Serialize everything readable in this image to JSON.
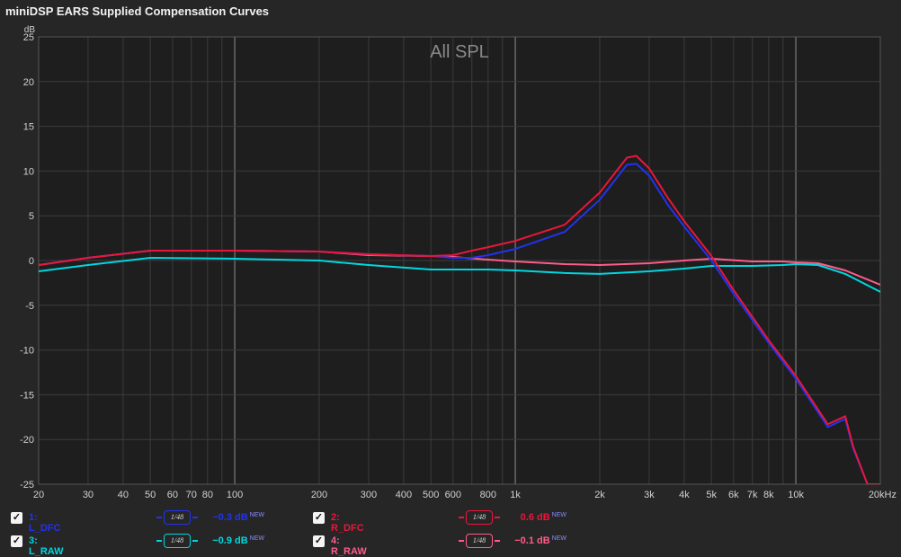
{
  "window": {
    "title": "miniDSP EARS Supplied Compensation Curves"
  },
  "chart_data": {
    "type": "line",
    "title": "All SPL",
    "ylabel": "dB",
    "xscale": "log",
    "xlim": [
      20,
      20000
    ],
    "ylim": [
      -25,
      25
    ],
    "grid": true,
    "xticks": [
      20,
      30,
      40,
      50,
      60,
      70,
      80,
      100,
      200,
      300,
      400,
      500,
      600,
      800,
      1000,
      2000,
      3000,
      4000,
      5000,
      6000,
      7000,
      8000,
      10000,
      20000
    ],
    "xtick_labels": [
      "20",
      "30",
      "40",
      "50",
      "60",
      "70",
      "80",
      "100",
      "200",
      "300",
      "400",
      "500",
      "600",
      "800",
      "1k",
      "2k",
      "3k",
      "4k",
      "5k",
      "6k",
      "7k",
      "8k",
      "10k",
      "20kHz"
    ],
    "yticks": [
      25,
      20,
      15,
      10,
      5,
      0,
      -5,
      -10,
      -15,
      -20,
      -25
    ],
    "ytick_labels": [
      "25",
      "20",
      "15",
      "10",
      "5",
      "0",
      "-5",
      "-10",
      "-15",
      "-20",
      "-25"
    ],
    "series": [
      {
        "name": "1: L_DFC",
        "color": "#2233ee",
        "x": [
          20,
          30,
          50,
          100,
          200,
          300,
          500,
          600,
          700,
          800,
          1000,
          1500,
          2000,
          2500,
          2700,
          3000,
          3500,
          4000,
          5000,
          6000,
          8000,
          10000,
          13000,
          15000,
          16000,
          18000,
          20000
        ],
        "y": [
          -0.5,
          0.3,
          1.1,
          1.1,
          1.0,
          0.7,
          0.5,
          0.3,
          0.3,
          0.6,
          1.3,
          3.2,
          6.8,
          10.7,
          10.8,
          9.5,
          6.2,
          3.8,
          0.0,
          -3.7,
          -9.2,
          -13.2,
          -18.6,
          -17.7,
          -21.0,
          -25.0,
          -25.0
        ]
      },
      {
        "name": "2: R_DFC",
        "color": "#e8173a",
        "x": [
          20,
          30,
          50,
          100,
          200,
          300,
          500,
          600,
          700,
          800,
          1000,
          1500,
          2000,
          2500,
          2700,
          3000,
          3500,
          4000,
          5000,
          6000,
          8000,
          10000,
          13000,
          15000,
          16000,
          18000,
          20000
        ],
        "y": [
          -0.5,
          0.3,
          1.1,
          1.1,
          1.0,
          0.7,
          0.5,
          0.6,
          1.1,
          1.5,
          2.2,
          4.0,
          7.6,
          11.5,
          11.7,
          10.3,
          7.0,
          4.4,
          0.5,
          -3.3,
          -8.9,
          -12.9,
          -18.3,
          -17.4,
          -20.8,
          -25.0,
          -25.0
        ]
      },
      {
        "name": "3: L_RAW",
        "color": "#00d7e0",
        "x": [
          20,
          30,
          50,
          100,
          200,
          300,
          500,
          600,
          800,
          1000,
          1500,
          2000,
          3000,
          4000,
          5000,
          7000,
          9000,
          10000,
          12000,
          15000,
          20000
        ],
        "y": [
          -1.2,
          -0.5,
          0.3,
          0.2,
          0.0,
          -0.5,
          -1.0,
          -1.0,
          -1.0,
          -1.1,
          -1.4,
          -1.5,
          -1.2,
          -0.9,
          -0.6,
          -0.6,
          -0.5,
          -0.4,
          -0.5,
          -1.5,
          -3.5
        ]
      },
      {
        "name": "4: R_RAW",
        "color": "#ff5c8a",
        "x": [
          20,
          30,
          50,
          100,
          200,
          300,
          500,
          600,
          800,
          1000,
          1500,
          2000,
          3000,
          4000,
          5000,
          7000,
          9000,
          10000,
          12000,
          15000,
          20000
        ],
        "y": [
          -0.5,
          0.3,
          1.1,
          1.1,
          1.0,
          0.6,
          0.5,
          0.4,
          0.1,
          -0.1,
          -0.4,
          -0.5,
          -0.3,
          0.0,
          0.2,
          -0.1,
          -0.1,
          -0.2,
          -0.3,
          -1.1,
          -2.7
        ]
      }
    ]
  },
  "legend": [
    {
      "name": "1: L_DFC",
      "color": "#2233ee",
      "smoothing": "1/48",
      "offset": "−0.3 dB",
      "badge": "NEW"
    },
    {
      "name": "2: R_DFC",
      "color": "#e8173a",
      "smoothing": "1/48",
      "offset": "0.6 dB",
      "badge": "NEW"
    },
    {
      "name": "3: L_RAW",
      "color": "#00d7e0",
      "smoothing": "1/48",
      "offset": "−0.9 dB",
      "badge": "NEW"
    },
    {
      "name": "4: R_RAW",
      "color": "#ff5c8a",
      "smoothing": "1/48",
      "offset": "−0.1 dB",
      "badge": "NEW"
    }
  ]
}
